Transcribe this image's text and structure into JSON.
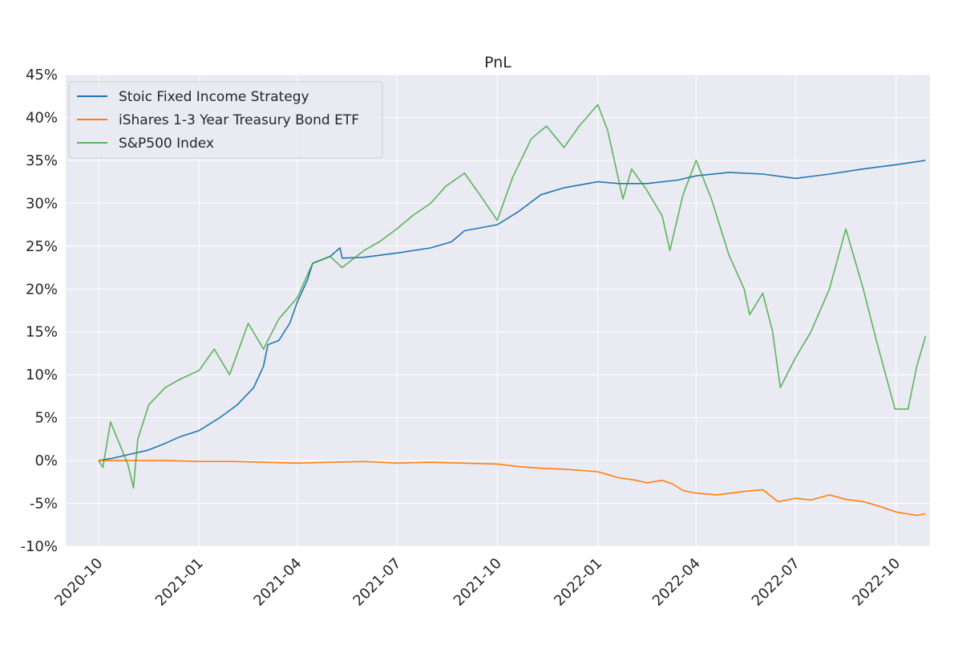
{
  "chart_data": {
    "type": "line",
    "title": "PnL",
    "xlabel": "",
    "ylabel": "",
    "y_tick_labels": [
      "-10%",
      "-5%",
      "0%",
      "5%",
      "10%",
      "15%",
      "20%",
      "25%",
      "30%",
      "35%",
      "40%",
      "45%"
    ],
    "y_ticks": [
      -10,
      -5,
      0,
      5,
      10,
      15,
      20,
      25,
      30,
      35,
      40,
      45
    ],
    "ylim": [
      -10,
      45
    ],
    "x_tick_labels": [
      "2020-10",
      "2021-01",
      "2021-04",
      "2021-07",
      "2021-10",
      "2022-01",
      "2022-04",
      "2022-07",
      "2022-10"
    ],
    "x_ticks": [
      "2020-10-01",
      "2021-01-01",
      "2021-04-01",
      "2021-07-01",
      "2021-10-01",
      "2022-01-01",
      "2022-04-01",
      "2022-07-01",
      "2022-10-01"
    ],
    "xlim": [
      "2020-09-01",
      "2022-11-01"
    ],
    "grid": true,
    "legend_position": "top-left",
    "y_unit": "%",
    "series": [
      {
        "name": "Stoic Fixed Income Strategy",
        "color": "#1f77b4",
        "points": [
          [
            "2020-10-01",
            0.0
          ],
          [
            "2020-10-15",
            0.3
          ],
          [
            "2020-11-01",
            0.8
          ],
          [
            "2020-11-15",
            1.2
          ],
          [
            "2020-12-01",
            2.0
          ],
          [
            "2020-12-15",
            2.8
          ],
          [
            "2021-01-01",
            3.5
          ],
          [
            "2021-01-20",
            5.0
          ],
          [
            "2021-02-05",
            6.5
          ],
          [
            "2021-02-20",
            8.5
          ],
          [
            "2021-03-01",
            11.0
          ],
          [
            "2021-03-05",
            13.5
          ],
          [
            "2021-03-15",
            14.0
          ],
          [
            "2021-03-25",
            16.0
          ],
          [
            "2021-04-01",
            18.5
          ],
          [
            "2021-04-10",
            21.0
          ],
          [
            "2021-04-15",
            23.0
          ],
          [
            "2021-05-01",
            23.8
          ],
          [
            "2021-05-10",
            24.8
          ],
          [
            "2021-05-12",
            23.6
          ],
          [
            "2021-06-01",
            23.7
          ],
          [
            "2021-07-01",
            24.2
          ],
          [
            "2021-08-01",
            24.8
          ],
          [
            "2021-08-20",
            25.5
          ],
          [
            "2021-09-01",
            26.8
          ],
          [
            "2021-10-01",
            27.5
          ],
          [
            "2021-10-20",
            29.0
          ],
          [
            "2021-11-10",
            31.0
          ],
          [
            "2021-12-01",
            31.8
          ],
          [
            "2022-01-01",
            32.5
          ],
          [
            "2022-01-20",
            32.3
          ],
          [
            "2022-02-15",
            32.3
          ],
          [
            "2022-03-15",
            32.7
          ],
          [
            "2022-04-01",
            33.2
          ],
          [
            "2022-05-01",
            33.6
          ],
          [
            "2022-06-01",
            33.4
          ],
          [
            "2022-07-01",
            32.9
          ],
          [
            "2022-08-01",
            33.4
          ],
          [
            "2022-09-01",
            34.0
          ],
          [
            "2022-10-01",
            34.5
          ],
          [
            "2022-10-28",
            35.0
          ]
        ]
      },
      {
        "name": "iShares 1-3 Year Treasury Bond ETF",
        "color": "#ff7f0e",
        "points": [
          [
            "2020-10-01",
            0.0
          ],
          [
            "2020-11-01",
            0.0
          ],
          [
            "2020-12-01",
            0.0
          ],
          [
            "2021-01-01",
            -0.1
          ],
          [
            "2021-02-01",
            -0.1
          ],
          [
            "2021-03-01",
            -0.2
          ],
          [
            "2021-04-01",
            -0.3
          ],
          [
            "2021-05-01",
            -0.2
          ],
          [
            "2021-06-01",
            -0.1
          ],
          [
            "2021-07-01",
            -0.3
          ],
          [
            "2021-08-01",
            -0.2
          ],
          [
            "2021-09-01",
            -0.3
          ],
          [
            "2021-10-01",
            -0.4
          ],
          [
            "2021-10-20",
            -0.7
          ],
          [
            "2021-11-10",
            -0.9
          ],
          [
            "2021-12-01",
            -1.0
          ],
          [
            "2022-01-01",
            -1.3
          ],
          [
            "2022-01-20",
            -2.0
          ],
          [
            "2022-02-05",
            -2.3
          ],
          [
            "2022-02-15",
            -2.6
          ],
          [
            "2022-03-01",
            -2.3
          ],
          [
            "2022-03-10",
            -2.7
          ],
          [
            "2022-03-20",
            -3.5
          ],
          [
            "2022-04-01",
            -3.8
          ],
          [
            "2022-04-20",
            -4.0
          ],
          [
            "2022-05-15",
            -3.6
          ],
          [
            "2022-06-01",
            -3.4
          ],
          [
            "2022-06-15",
            -4.8
          ],
          [
            "2022-07-01",
            -4.4
          ],
          [
            "2022-07-15",
            -4.6
          ],
          [
            "2022-08-01",
            -4.0
          ],
          [
            "2022-08-15",
            -4.5
          ],
          [
            "2022-09-01",
            -4.8
          ],
          [
            "2022-09-15",
            -5.3
          ],
          [
            "2022-10-01",
            -6.0
          ],
          [
            "2022-10-20",
            -6.4
          ],
          [
            "2022-10-28",
            -6.2
          ]
        ]
      },
      {
        "name": "S&P500 Index",
        "color": "#2ca02c",
        "points": [
          [
            "2020-10-01",
            0.0
          ],
          [
            "2020-10-05",
            -0.8
          ],
          [
            "2020-10-12",
            4.5
          ],
          [
            "2020-10-20",
            2.0
          ],
          [
            "2020-10-28",
            -0.5
          ],
          [
            "2020-11-02",
            -3.2
          ],
          [
            "2020-11-06",
            2.5
          ],
          [
            "2020-11-16",
            6.5
          ],
          [
            "2020-12-01",
            8.5
          ],
          [
            "2020-12-15",
            9.5
          ],
          [
            "2021-01-01",
            10.5
          ],
          [
            "2021-01-15",
            13.0
          ],
          [
            "2021-01-29",
            10.0
          ],
          [
            "2021-02-15",
            16.0
          ],
          [
            "2021-03-01",
            13.0
          ],
          [
            "2021-03-15",
            16.5
          ],
          [
            "2021-04-01",
            19.0
          ],
          [
            "2021-04-15",
            23.0
          ],
          [
            "2021-05-01",
            23.8
          ],
          [
            "2021-05-12",
            22.5
          ],
          [
            "2021-06-01",
            24.5
          ],
          [
            "2021-06-15",
            25.5
          ],
          [
            "2021-07-01",
            27.0
          ],
          [
            "2021-07-15",
            28.5
          ],
          [
            "2021-08-01",
            30.0
          ],
          [
            "2021-08-15",
            32.0
          ],
          [
            "2021-09-01",
            33.5
          ],
          [
            "2021-09-15",
            31.0
          ],
          [
            "2021-10-01",
            28.0
          ],
          [
            "2021-10-15",
            33.0
          ],
          [
            "2021-11-01",
            37.5
          ],
          [
            "2021-11-15",
            39.0
          ],
          [
            "2021-12-01",
            36.5
          ],
          [
            "2021-12-15",
            39.0
          ],
          [
            "2022-01-01",
            41.5
          ],
          [
            "2022-01-10",
            38.5
          ],
          [
            "2022-01-24",
            30.5
          ],
          [
            "2022-02-01",
            34.0
          ],
          [
            "2022-02-15",
            31.5
          ],
          [
            "2022-03-01",
            28.5
          ],
          [
            "2022-03-08",
            24.5
          ],
          [
            "2022-03-20",
            31.0
          ],
          [
            "2022-04-01",
            35.0
          ],
          [
            "2022-04-15",
            30.5
          ],
          [
            "2022-05-01",
            24.0
          ],
          [
            "2022-05-15",
            20.0
          ],
          [
            "2022-05-20",
            17.0
          ],
          [
            "2022-06-01",
            19.5
          ],
          [
            "2022-06-10",
            15.0
          ],
          [
            "2022-06-17",
            8.5
          ],
          [
            "2022-07-01",
            12.0
          ],
          [
            "2022-07-15",
            15.0
          ],
          [
            "2022-08-01",
            20.0
          ],
          [
            "2022-08-16",
            27.0
          ],
          [
            "2022-09-01",
            20.0
          ],
          [
            "2022-09-13",
            14.0
          ],
          [
            "2022-09-30",
            6.0
          ],
          [
            "2022-10-12",
            6.0
          ],
          [
            "2022-10-20",
            11.0
          ],
          [
            "2022-10-28",
            14.5
          ]
        ]
      }
    ]
  }
}
